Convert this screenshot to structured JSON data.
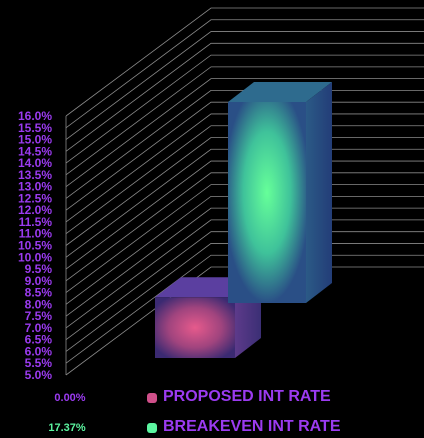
{
  "chart_data": {
    "type": "bar",
    "bar_style": "3d",
    "y_ticks": [
      "16.0%",
      "15.5%",
      "15.0%",
      "14.5%",
      "14.0%",
      "13.5%",
      "13.0%",
      "12.5%",
      "12.0%",
      "11.5%",
      "11.0%",
      "10.5%",
      "10.0%",
      "9.5%",
      "9.0%",
      "8.5%",
      "8.0%",
      "7.5%",
      "7.0%",
      "6.5%",
      "6.0%",
      "5.5%",
      "5.0%"
    ],
    "ylim": [
      5.0,
      16.0
    ],
    "grid": true,
    "legend_position": "bottom",
    "series": [
      {
        "name": "PROPOSED INT RATE",
        "value": 0.0,
        "value_label": "0.00%",
        "color": "#d0508a",
        "value_color": "#9b3bf0"
      },
      {
        "name": "BREAKEVEN INT RATE",
        "value": 17.37,
        "value_label": "17.37%",
        "color": "#5cf5a0",
        "value_color": "#5cf5a0"
      }
    ]
  }
}
